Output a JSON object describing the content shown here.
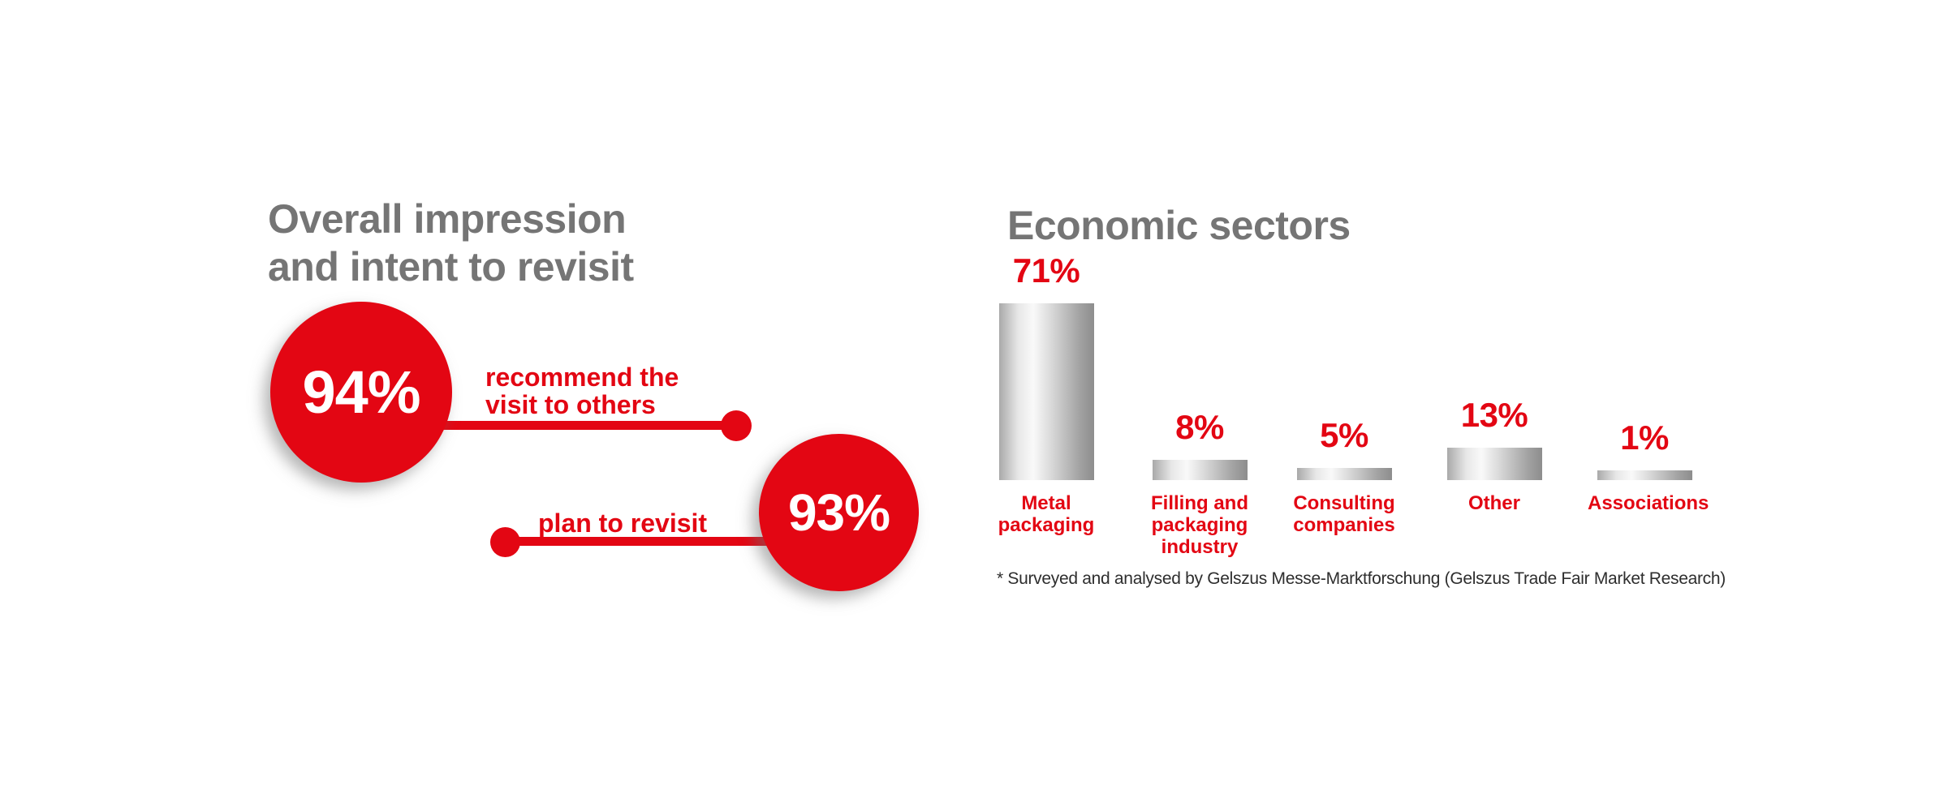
{
  "colors": {
    "accent_red": "#e30613",
    "heading_gray": "#757575",
    "footnote_text": "#2e2e2e",
    "bar_silver_edge": "#8d8d8d",
    "bar_silver_highlight": "#f9f9f9"
  },
  "impression": {
    "title_line1": "Overall impression",
    "title_line2": "and intent to revisit",
    "stats": [
      {
        "value": "94%",
        "label_line1": "recommend the",
        "label_line2": "visit to others"
      },
      {
        "value": "93%",
        "label": "plan to revisit"
      }
    ]
  },
  "sectors": {
    "title": "Economic sectors",
    "footnote": "* Surveyed and analysed by Gelszus Messe-Marktforschung (Gelszus Trade Fair Market Research)"
  },
  "chart_data": {
    "type": "bar",
    "title": "Economic sectors",
    "categories": [
      "Metal packaging",
      "Filling and packaging industry",
      "Consulting companies",
      "Other",
      "Associations"
    ],
    "values": [
      71,
      8,
      5,
      13,
      1
    ],
    "value_labels": [
      "71%",
      "8%",
      "5%",
      "13%",
      "1%"
    ],
    "xlabel": "",
    "ylabel": "",
    "ylim": [
      0,
      75
    ],
    "grid": false,
    "legend": false,
    "bar_style": "metallic-silver-horizontal-gradient",
    "value_label_color": "#e30613",
    "category_label_color": "#e30613"
  }
}
